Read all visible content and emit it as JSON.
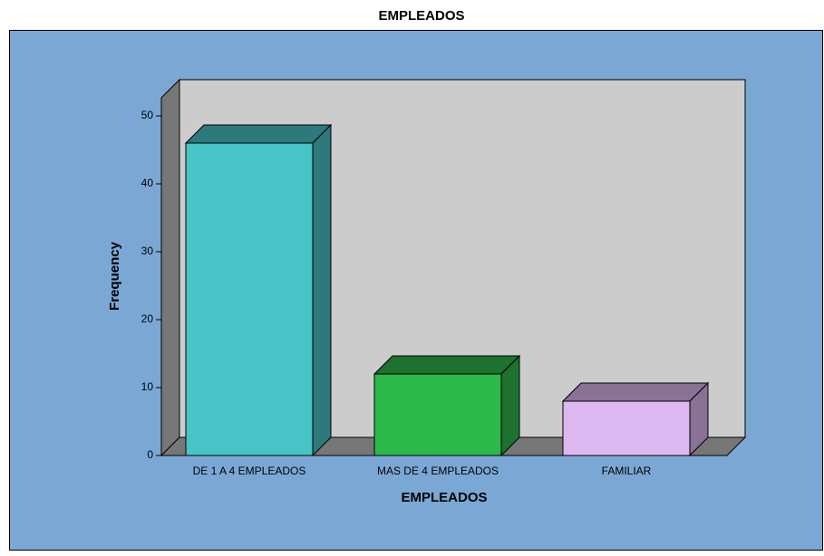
{
  "chart_data": {
    "type": "bar3d",
    "title": "EMPLEADOS",
    "x_label": "EMPLEADOS",
    "y_label": "Frequency",
    "categories": [
      "DE 1 A 4 EMPLEADOS",
      "MAS DE 4 EMPLEADOS",
      "FAMILIAR"
    ],
    "values": [
      46,
      12,
      8
    ],
    "colors": [
      "#48c3c6",
      "#2db84a",
      "#ddb8f0"
    ],
    "ylim": [
      0,
      50
    ],
    "yticks": [
      0,
      10,
      20,
      30,
      40,
      50
    ]
  }
}
